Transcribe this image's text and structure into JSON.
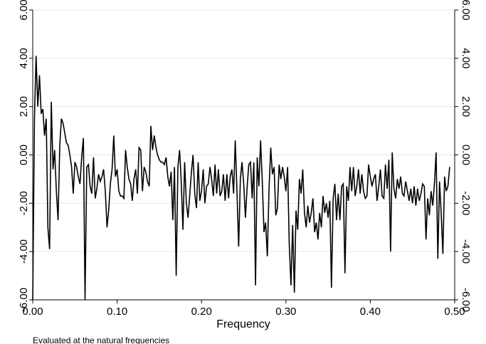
{
  "chart_data": {
    "type": "line",
    "xlabel": "Frequency",
    "note": "Evaluated at the natural frequencies",
    "xlim": [
      0,
      0.5
    ],
    "ylim": [
      -6,
      6
    ],
    "x_ticks": [
      {
        "value": 0.0,
        "label": "0.00"
      },
      {
        "value": 0.1,
        "label": "0.10"
      },
      {
        "value": 0.2,
        "label": "0.20"
      },
      {
        "value": 0.3,
        "label": "0.30"
      },
      {
        "value": 0.4,
        "label": "0.40"
      },
      {
        "value": 0.5,
        "label": "0.50"
      }
    ],
    "y_ticks": [
      {
        "value": -6,
        "label": "-6.00"
      },
      {
        "value": -4,
        "label": "-4.00"
      },
      {
        "value": -2,
        "label": "-2.00"
      },
      {
        "value": 0,
        "label": "0.00"
      },
      {
        "value": 2,
        "label": "2.00"
      },
      {
        "value": 4,
        "label": "4.00"
      },
      {
        "value": 6,
        "label": "6.00"
      }
    ],
    "grid": "horizontal",
    "line_color": "#000000",
    "grid_color": "#e6e6e6",
    "series": [
      {
        "points": [
          [
            0.0,
            -6.0
          ],
          [
            0.002,
            1.5
          ],
          [
            0.004,
            4.1
          ],
          [
            0.006,
            2.0
          ],
          [
            0.008,
            3.3
          ],
          [
            0.01,
            1.7
          ],
          [
            0.012,
            1.9
          ],
          [
            0.014,
            0.8
          ],
          [
            0.016,
            1.5
          ],
          [
            0.018,
            -3.0
          ],
          [
            0.02,
            -3.9
          ],
          [
            0.022,
            2.2
          ],
          [
            0.024,
            -0.6
          ],
          [
            0.026,
            0.2
          ],
          [
            0.028,
            -1.5
          ],
          [
            0.03,
            -2.7
          ],
          [
            0.032,
            0.4
          ],
          [
            0.034,
            1.5
          ],
          [
            0.036,
            1.3
          ],
          [
            0.038,
            0.9
          ],
          [
            0.04,
            0.5
          ],
          [
            0.042,
            0.4
          ],
          [
            0.044,
            0.0
          ],
          [
            0.046,
            -0.5
          ],
          [
            0.048,
            -1.6
          ],
          [
            0.05,
            -0.3
          ],
          [
            0.052,
            -0.5
          ],
          [
            0.054,
            -0.9
          ],
          [
            0.056,
            -1.2
          ],
          [
            0.058,
            -0.1
          ],
          [
            0.06,
            0.7
          ],
          [
            0.062,
            -6.0
          ],
          [
            0.064,
            -0.5
          ],
          [
            0.066,
            -0.4
          ],
          [
            0.068,
            -1.3
          ],
          [
            0.07,
            -1.6
          ],
          [
            0.072,
            -0.1
          ],
          [
            0.074,
            -1.8
          ],
          [
            0.076,
            -1.4
          ],
          [
            0.078,
            -0.8
          ],
          [
            0.08,
            -1.1
          ],
          [
            0.082,
            -0.9
          ],
          [
            0.084,
            -0.6
          ],
          [
            0.086,
            -1.5
          ],
          [
            0.088,
            -3.0
          ],
          [
            0.09,
            -2.3
          ],
          [
            0.092,
            -1.2
          ],
          [
            0.094,
            -0.6
          ],
          [
            0.096,
            0.8
          ],
          [
            0.098,
            -0.9
          ],
          [
            0.1,
            -0.6
          ],
          [
            0.102,
            -1.5
          ],
          [
            0.104,
            -1.7
          ],
          [
            0.106,
            -1.7
          ],
          [
            0.108,
            -1.8
          ],
          [
            0.11,
            0.2
          ],
          [
            0.112,
            -0.5
          ],
          [
            0.114,
            -1.0
          ],
          [
            0.116,
            -1.2
          ],
          [
            0.118,
            -1.9
          ],
          [
            0.12,
            -1.0
          ],
          [
            0.122,
            -0.6
          ],
          [
            0.124,
            -1.6
          ],
          [
            0.126,
            0.3
          ],
          [
            0.128,
            0.2
          ],
          [
            0.13,
            -1.5
          ],
          [
            0.132,
            -0.5
          ],
          [
            0.134,
            -0.7
          ],
          [
            0.136,
            -1.1
          ],
          [
            0.138,
            -1.3
          ],
          [
            0.14,
            1.2
          ],
          [
            0.142,
            0.2
          ],
          [
            0.144,
            0.8
          ],
          [
            0.146,
            0.3
          ],
          [
            0.148,
            0.0
          ],
          [
            0.15,
            -0.2
          ],
          [
            0.152,
            -0.3
          ],
          [
            0.154,
            -0.3
          ],
          [
            0.156,
            -0.4
          ],
          [
            0.158,
            -0.1
          ],
          [
            0.16,
            -0.9
          ],
          [
            0.162,
            -1.3
          ],
          [
            0.164,
            -0.7
          ],
          [
            0.166,
            -2.7
          ],
          [
            0.168,
            -0.5
          ],
          [
            0.17,
            -5.0
          ],
          [
            0.172,
            -0.5
          ],
          [
            0.174,
            0.2
          ],
          [
            0.176,
            -1.1
          ],
          [
            0.178,
            -3.1
          ],
          [
            0.18,
            -0.3
          ],
          [
            0.182,
            -2.0
          ],
          [
            0.184,
            -2.6
          ],
          [
            0.186,
            -1.7
          ],
          [
            0.188,
            -0.7
          ],
          [
            0.19,
            0.0
          ],
          [
            0.192,
            -1.6
          ],
          [
            0.194,
            -2.2
          ],
          [
            0.196,
            -0.3
          ],
          [
            0.198,
            -1.9
          ],
          [
            0.2,
            -1.5
          ],
          [
            0.202,
            -0.6
          ],
          [
            0.204,
            -2.0
          ],
          [
            0.206,
            -1.3
          ],
          [
            0.208,
            -1.2
          ],
          [
            0.21,
            -0.5
          ],
          [
            0.212,
            -1.0
          ],
          [
            0.214,
            -1.7
          ],
          [
            0.216,
            -0.4
          ],
          [
            0.218,
            -1.6
          ],
          [
            0.22,
            -0.6
          ],
          [
            0.222,
            -1.7
          ],
          [
            0.224,
            -1.5
          ],
          [
            0.226,
            -0.8
          ],
          [
            0.228,
            -1.9
          ],
          [
            0.23,
            -0.8
          ],
          [
            0.232,
            -1.8
          ],
          [
            0.234,
            -0.9
          ],
          [
            0.236,
            -0.6
          ],
          [
            0.238,
            -1.6
          ],
          [
            0.24,
            0.6
          ],
          [
            0.242,
            -1.5
          ],
          [
            0.244,
            -3.8
          ],
          [
            0.246,
            -1.0
          ],
          [
            0.248,
            -0.3
          ],
          [
            0.25,
            -1.2
          ],
          [
            0.252,
            -2.6
          ],
          [
            0.254,
            -1.4
          ],
          [
            0.256,
            -0.4
          ],
          [
            0.258,
            -0.3
          ],
          [
            0.26,
            -1.8
          ],
          [
            0.262,
            -0.3
          ],
          [
            0.264,
            -5.4
          ],
          [
            0.266,
            -0.1
          ],
          [
            0.268,
            -1.3
          ],
          [
            0.27,
            0.6
          ],
          [
            0.272,
            -1.1
          ],
          [
            0.274,
            -3.2
          ],
          [
            0.276,
            -2.8
          ],
          [
            0.278,
            -4.2
          ],
          [
            0.28,
            -1.4
          ],
          [
            0.282,
            0.3
          ],
          [
            0.284,
            -0.8
          ],
          [
            0.286,
            -0.5
          ],
          [
            0.288,
            -2.5
          ],
          [
            0.29,
            -2.2
          ],
          [
            0.292,
            -0.4
          ],
          [
            0.294,
            -1.0
          ],
          [
            0.296,
            -0.5
          ],
          [
            0.298,
            -0.9
          ],
          [
            0.3,
            -1.5
          ],
          [
            0.302,
            -0.5
          ],
          [
            0.304,
            -3.7
          ],
          [
            0.306,
            -5.4
          ],
          [
            0.308,
            -2.9
          ],
          [
            0.31,
            -5.7
          ],
          [
            0.312,
            -2.3
          ],
          [
            0.314,
            -3.1
          ],
          [
            0.316,
            -1.0
          ],
          [
            0.318,
            -1.6
          ],
          [
            0.32,
            -0.6
          ],
          [
            0.322,
            -2.4
          ],
          [
            0.324,
            -3.0
          ],
          [
            0.326,
            -2.1
          ],
          [
            0.328,
            -2.8
          ],
          [
            0.33,
            -2.4
          ],
          [
            0.332,
            -1.8
          ],
          [
            0.334,
            -3.2
          ],
          [
            0.336,
            -2.8
          ],
          [
            0.338,
            -3.5
          ],
          [
            0.34,
            -2.4
          ],
          [
            0.342,
            -3.0
          ],
          [
            0.344,
            -1.7
          ],
          [
            0.346,
            -2.4
          ],
          [
            0.348,
            -2.0
          ],
          [
            0.35,
            -2.6
          ],
          [
            0.352,
            -1.9
          ],
          [
            0.354,
            -5.5
          ],
          [
            0.356,
            -1.8
          ],
          [
            0.358,
            -1.2
          ],
          [
            0.36,
            -2.7
          ],
          [
            0.362,
            -1.6
          ],
          [
            0.364,
            -2.7
          ],
          [
            0.366,
            -1.3
          ],
          [
            0.368,
            -1.2
          ],
          [
            0.37,
            -4.9
          ],
          [
            0.372,
            -1.3
          ],
          [
            0.374,
            -1.9
          ],
          [
            0.376,
            -0.5
          ],
          [
            0.378,
            -1.5
          ],
          [
            0.38,
            -0.5
          ],
          [
            0.382,
            -1.7
          ],
          [
            0.384,
            -1.3
          ],
          [
            0.386,
            -0.6
          ],
          [
            0.388,
            -1.6
          ],
          [
            0.39,
            -0.8
          ],
          [
            0.392,
            -1.5
          ],
          [
            0.394,
            -1.8
          ],
          [
            0.396,
            -1.7
          ],
          [
            0.398,
            -0.4
          ],
          [
            0.4,
            -0.9
          ],
          [
            0.402,
            -1.3
          ],
          [
            0.404,
            -1.0
          ],
          [
            0.406,
            -0.8
          ],
          [
            0.408,
            -1.9
          ],
          [
            0.41,
            -1.3
          ],
          [
            0.412,
            -0.6
          ],
          [
            0.414,
            -1.7
          ],
          [
            0.416,
            -1.8
          ],
          [
            0.418,
            -0.4
          ],
          [
            0.42,
            -1.4
          ],
          [
            0.422,
            -0.2
          ],
          [
            0.424,
            -4.0
          ],
          [
            0.426,
            0.1
          ],
          [
            0.428,
            -1.4
          ],
          [
            0.43,
            -1.8
          ],
          [
            0.432,
            -1.0
          ],
          [
            0.434,
            -1.4
          ],
          [
            0.436,
            -0.9
          ],
          [
            0.438,
            -1.6
          ],
          [
            0.44,
            -1.7
          ],
          [
            0.442,
            -1.1
          ],
          [
            0.444,
            -1.5
          ],
          [
            0.446,
            -1.9
          ],
          [
            0.448,
            -1.4
          ],
          [
            0.45,
            -2.0
          ],
          [
            0.452,
            -1.3
          ],
          [
            0.454,
            -2.1
          ],
          [
            0.456,
            -1.4
          ],
          [
            0.458,
            -1.9
          ],
          [
            0.46,
            -1.6
          ],
          [
            0.462,
            -1.2
          ],
          [
            0.464,
            -1.3
          ],
          [
            0.466,
            -3.5
          ],
          [
            0.468,
            -1.8
          ],
          [
            0.47,
            -2.5
          ],
          [
            0.472,
            -1.5
          ],
          [
            0.474,
            -2.1
          ],
          [
            0.476,
            -1.2
          ],
          [
            0.478,
            0.1
          ],
          [
            0.48,
            -4.3
          ],
          [
            0.482,
            -1.1
          ],
          [
            0.484,
            -2.4
          ],
          [
            0.486,
            -4.1
          ],
          [
            0.488,
            -0.9
          ],
          [
            0.49,
            -1.5
          ],
          [
            0.492,
            -1.3
          ],
          [
            0.494,
            -0.5
          ]
        ]
      }
    ]
  }
}
